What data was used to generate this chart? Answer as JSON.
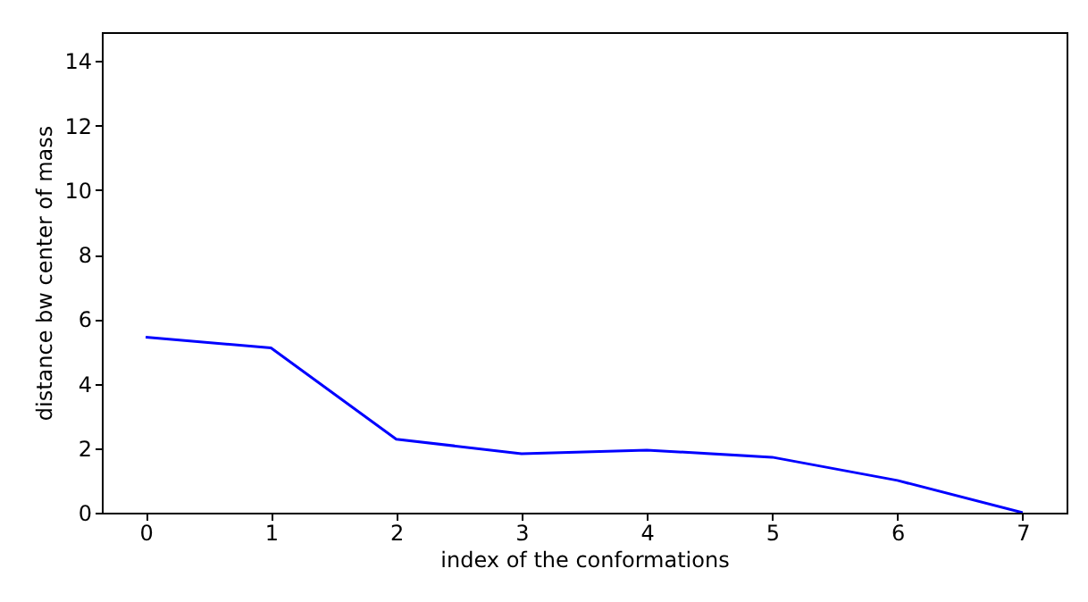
{
  "chart_data": {
    "type": "line",
    "xlabel": "index of the conformations",
    "ylabel": "distance bw center of mass",
    "x": [
      0,
      1,
      2,
      3,
      4,
      5,
      6,
      7
    ],
    "series": [
      {
        "color": "#0000ff",
        "values": [
          5.44,
          5.11,
          2.28,
          1.83,
          1.94,
          1.72,
          1.0,
          0.0
        ]
      }
    ],
    "xlim": [
      -0.35,
      7.35
    ],
    "ylim": [
      0,
      14.9
    ],
    "xticks": [
      0,
      1,
      2,
      3,
      4,
      5,
      6,
      7
    ],
    "yticks": [
      0,
      2,
      4,
      6,
      8,
      10,
      12,
      14
    ],
    "grid": false,
    "marker": "none",
    "line_style": "solid"
  }
}
